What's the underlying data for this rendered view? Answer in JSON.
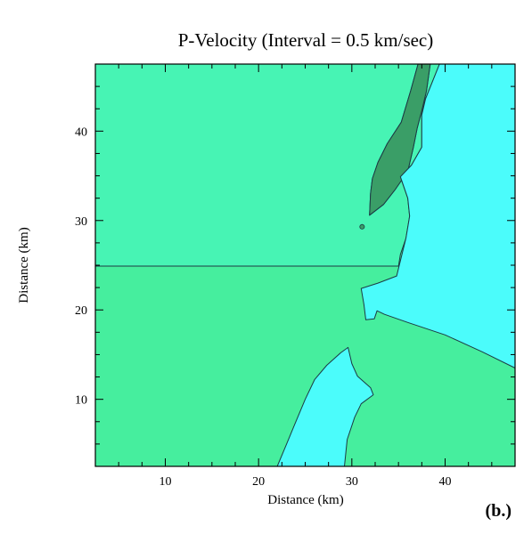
{
  "chart_data": {
    "type": "heatmap",
    "title": "P-Velocity (Interval = 0.5 km/sec)",
    "xlabel": "Distance (km)",
    "ylabel": "Distance (km)",
    "panel_label": "(b.)",
    "xlim": [
      2.5,
      47.5
    ],
    "ylim": [
      2.5,
      47.5
    ],
    "x_ticks": [
      10,
      20,
      30,
      40
    ],
    "y_ticks": [
      10,
      20,
      30,
      40
    ],
    "grid": false,
    "colors": {
      "background": "#46ee9e",
      "upper_block": "#47f4b4",
      "low_velocity_zone": "#3a9e67",
      "high_velocity_zone": "#4bfcfb",
      "contour_line": "#1c3a44"
    },
    "regions": [
      {
        "name": "upper-block",
        "color": "#47f4b4",
        "polygon": [
          [
            2.5,
            24.9
          ],
          [
            2.5,
            47.5
          ],
          [
            37.1,
            47.5
          ],
          [
            36.3,
            44.5
          ],
          [
            35.3,
            41.0
          ],
          [
            33.8,
            38.6
          ],
          [
            32.8,
            36.5
          ],
          [
            32.2,
            34.7
          ],
          [
            32.0,
            33.0
          ],
          [
            31.9,
            30.6
          ],
          [
            33.4,
            31.8
          ],
          [
            34.6,
            33.4
          ],
          [
            36.0,
            35.5
          ],
          [
            36.6,
            38.2
          ],
          [
            37.0,
            40.3
          ],
          [
            37.5,
            42.3
          ],
          [
            38.0,
            44.5
          ],
          [
            38.4,
            47.5
          ],
          [
            39.4,
            47.5
          ],
          [
            37.9,
            43.6
          ],
          [
            37.5,
            41.8
          ],
          [
            37.5,
            38.2
          ],
          [
            36.4,
            36.2
          ],
          [
            35.2,
            34.9
          ],
          [
            36.0,
            32.5
          ],
          [
            36.2,
            30.5
          ],
          [
            35.8,
            28.0
          ],
          [
            35.2,
            26.2
          ],
          [
            35.0,
            24.9
          ]
        ]
      },
      {
        "name": "low-velocity-zone",
        "color": "#3a9e67",
        "polygon": [
          [
            37.1,
            47.5
          ],
          [
            38.4,
            47.5
          ],
          [
            38.0,
            44.5
          ],
          [
            37.5,
            42.3
          ],
          [
            37.0,
            40.3
          ],
          [
            36.6,
            38.2
          ],
          [
            36.0,
            35.5
          ],
          [
            34.6,
            33.4
          ],
          [
            33.4,
            31.8
          ],
          [
            31.9,
            30.6
          ],
          [
            32.0,
            33.0
          ],
          [
            32.2,
            34.7
          ],
          [
            32.8,
            36.5
          ],
          [
            33.8,
            38.6
          ],
          [
            35.3,
            41.0
          ],
          [
            36.3,
            44.5
          ]
        ]
      },
      {
        "name": "east-high-velocity-zone",
        "color": "#4bfcfb",
        "polygon": [
          [
            39.4,
            47.5
          ],
          [
            47.5,
            47.5
          ],
          [
            47.5,
            13.5
          ],
          [
            44.0,
            15.3
          ],
          [
            40.0,
            17.2
          ],
          [
            36.0,
            18.6
          ],
          [
            33.5,
            19.5
          ],
          [
            32.7,
            19.9
          ],
          [
            32.4,
            19.0
          ],
          [
            31.5,
            18.9
          ],
          [
            31.3,
            20.6
          ],
          [
            31.0,
            22.4
          ],
          [
            32.8,
            23.0
          ],
          [
            34.8,
            23.8
          ],
          [
            35.3,
            25.9
          ],
          [
            35.8,
            28.0
          ],
          [
            36.2,
            30.5
          ],
          [
            36.0,
            32.5
          ],
          [
            35.2,
            34.9
          ],
          [
            36.4,
            36.2
          ],
          [
            37.5,
            38.2
          ],
          [
            37.5,
            41.8
          ],
          [
            37.9,
            43.6
          ]
        ]
      },
      {
        "name": "south-high-velocity-zone",
        "color": "#4bfcfb",
        "polygon": [
          [
            22.0,
            2.5
          ],
          [
            29.2,
            2.5
          ],
          [
            29.5,
            5.5
          ],
          [
            30.3,
            8.0
          ],
          [
            31.0,
            9.5
          ],
          [
            32.3,
            10.5
          ],
          [
            32.0,
            11.3
          ],
          [
            30.6,
            12.6
          ],
          [
            30.0,
            14.0
          ],
          [
            29.6,
            15.8
          ],
          [
            28.8,
            15.2
          ],
          [
            27.3,
            13.8
          ],
          [
            26.0,
            12.2
          ],
          [
            25.0,
            10.0
          ],
          [
            23.8,
            7.0
          ],
          [
            23.0,
            5.0
          ]
        ]
      }
    ],
    "specks": [
      {
        "x": 31.1,
        "y": 29.3,
        "color": "#3a9e67"
      }
    ]
  }
}
